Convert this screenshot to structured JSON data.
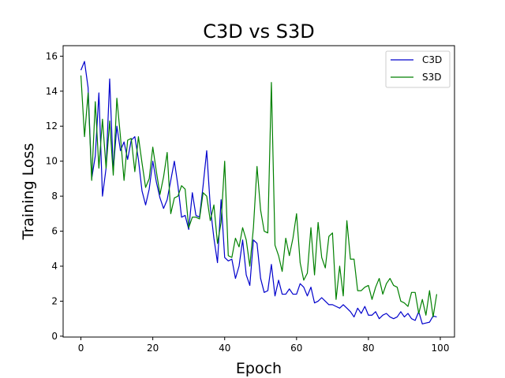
{
  "chart_data": {
    "type": "line",
    "title": "C3D vs S3D",
    "xlabel": "Epoch",
    "ylabel": "Training Loss",
    "xlim": [
      -4.95,
      103.95
    ],
    "ylim": [
      -0.05,
      16.6
    ],
    "xticks": [
      0,
      20,
      40,
      60,
      80,
      100
    ],
    "yticks": [
      0,
      2,
      4,
      6,
      8,
      10,
      12,
      14,
      16
    ],
    "grid": false,
    "legend": "top-right",
    "series": [
      {
        "name": "C3D",
        "color": "#0000cc",
        "values": [
          15.2,
          15.7,
          14.2,
          9.0,
          10.3,
          13.9,
          8.0,
          9.6,
          14.7,
          9.5,
          12.0,
          10.6,
          11.1,
          10.1,
          11.2,
          11.4,
          10.1,
          8.3,
          7.5,
          8.4,
          10.0,
          8.8,
          7.9,
          7.3,
          7.8,
          8.9,
          10.0,
          8.6,
          6.8,
          6.9,
          6.1,
          8.2,
          6.9,
          6.8,
          8.6,
          10.6,
          7.4,
          5.6,
          4.2,
          7.8,
          4.5,
          4.3,
          4.4,
          3.3,
          4.0,
          5.5,
          3.5,
          2.9,
          5.5,
          5.3,
          3.3,
          2.5,
          2.6,
          4.1,
          2.3,
          3.2,
          2.4,
          2.4,
          2.7,
          2.4,
          2.4,
          3.0,
          2.8,
          2.3,
          2.8,
          1.9,
          2.0,
          2.2,
          2.0,
          1.8,
          1.8,
          1.7,
          1.6,
          1.8,
          1.6,
          1.4,
          1.1,
          1.6,
          1.3,
          1.7,
          1.2,
          1.2,
          1.4,
          1.0,
          1.2,
          1.3,
          1.1,
          1.0,
          1.1,
          1.4,
          1.1,
          1.3,
          1.0,
          0.9,
          1.4,
          0.7,
          0.75,
          0.8,
          1.15,
          1.1
        ]
      },
      {
        "name": "S3D",
        "color": "#008000",
        "values": [
          14.9,
          11.4,
          13.9,
          8.9,
          13.4,
          9.6,
          12.4,
          9.6,
          12.3,
          9.2,
          13.6,
          11.4,
          8.9,
          11.2,
          11.3,
          9.4,
          11.4,
          9.9,
          8.5,
          9.0,
          10.8,
          9.4,
          8.1,
          9.1,
          10.5,
          7.0,
          7.9,
          8.0,
          8.6,
          8.4,
          6.2,
          6.8,
          6.8,
          6.7,
          8.2,
          8.0,
          6.6,
          7.5,
          5.3,
          6.5,
          10.0,
          4.6,
          4.5,
          5.6,
          5.1,
          6.2,
          5.5,
          4.0,
          6.2,
          9.7,
          7.2,
          6.0,
          5.9,
          14.5,
          5.2,
          4.6,
          3.7,
          5.6,
          4.6,
          5.6,
          7.0,
          4.2,
          3.2,
          3.6,
          6.2,
          3.5,
          6.5,
          4.5,
          3.9,
          5.7,
          5.9,
          2.1,
          4.0,
          2.3,
          6.6,
          4.4,
          4.4,
          2.6,
          2.6,
          2.8,
          2.9,
          2.1,
          2.8,
          3.3,
          2.4,
          3.0,
          3.3,
          2.9,
          2.8,
          2.0,
          1.9,
          1.7,
          2.5,
          2.5,
          1.3,
          2.1,
          1.2,
          2.6,
          1.1,
          2.4
        ]
      }
    ]
  }
}
